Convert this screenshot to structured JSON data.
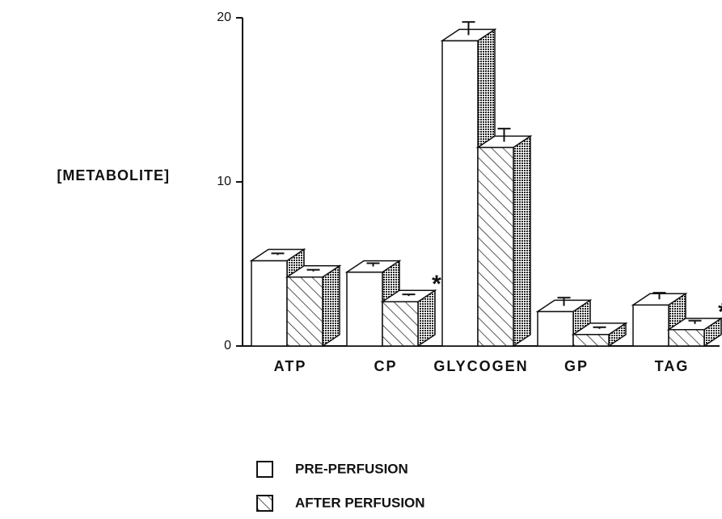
{
  "chart_data": {
    "type": "bar3d",
    "y_label": "[METABOLITE]",
    "categories": [
      "ATP",
      "CP",
      "GLYCOGEN",
      "GP",
      "TAG"
    ],
    "series": [
      {
        "name": "PRE-PERFUSION",
        "color": "#ffffff",
        "pattern": "none",
        "values": [
          5.2,
          4.5,
          18.6,
          2.1,
          2.5
        ],
        "errors": [
          0.1,
          0.2,
          0.8,
          0.5,
          0.4
        ]
      },
      {
        "name": "AFTER PERFUSION",
        "color": "#ffffff",
        "pattern": "hatch",
        "values": [
          4.2,
          2.7,
          12.1,
          0.7,
          1.0
        ],
        "errors": [
          0.1,
          0.1,
          0.8,
          0.1,
          0.2
        ],
        "markers": [
          null,
          "*",
          null,
          null,
          "*"
        ]
      }
    ],
    "ylim": [
      0,
      20
    ],
    "yticks": [
      0,
      10,
      20
    ]
  }
}
